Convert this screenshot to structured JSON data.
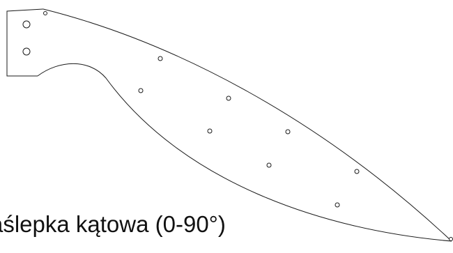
{
  "caption": "aślepka kątowa (0-90°)",
  "colors": {
    "line": "#1a1a1a",
    "background": "#ffffff"
  }
}
